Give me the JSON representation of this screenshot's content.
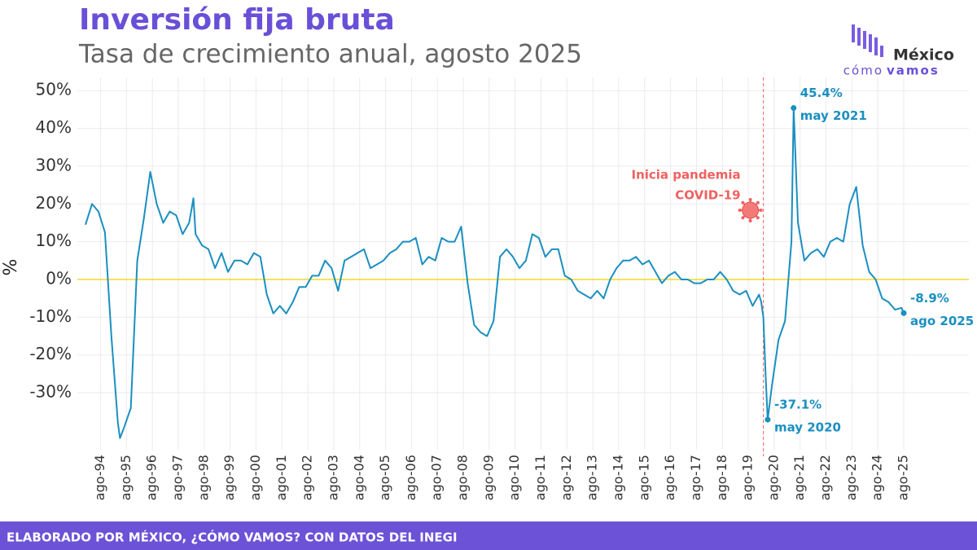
{
  "chart_data": {
    "type": "line",
    "title": "Inversión fija bruta",
    "subtitle": "Tasa de crecimiento anual, agosto 2025",
    "y_label": "%",
    "source": "ELABORADO POR MÉXICO, ¿CÓMO VAMOS? CON DATOS DEL INEGI",
    "logo": {
      "name": "México",
      "line1": "cómo",
      "line2": "vamos"
    },
    "color": "#1a8fc0",
    "zero_line_color": "#f0d000",
    "grid": true,
    "event": {
      "x": "2020-03",
      "label": [
        "Inicia pandemia",
        "COVID-19"
      ],
      "color": "#f06060"
    },
    "x": [
      "1994-01",
      "1994-04",
      "1994-07",
      "1994-10",
      "1995-01",
      "1995-04",
      "1995-05",
      "1995-07",
      "1995-10",
      "1996-01",
      "1996-04",
      "1996-07",
      "1996-10",
      "1997-01",
      "1997-04",
      "1997-07",
      "1997-10",
      "1998-01",
      "1998-03",
      "1998-04",
      "1998-07",
      "1998-10",
      "1999-01",
      "1999-04",
      "1999-07",
      "1999-10",
      "2000-01",
      "2000-04",
      "2000-07",
      "2000-10",
      "2001-01",
      "2001-04",
      "2001-07",
      "2001-10",
      "2002-01",
      "2002-04",
      "2002-07",
      "2002-10",
      "2003-01",
      "2003-04",
      "2003-07",
      "2003-10",
      "2004-01",
      "2004-04",
      "2004-07",
      "2004-10",
      "2005-01",
      "2005-04",
      "2005-07",
      "2005-10",
      "2006-01",
      "2006-04",
      "2006-07",
      "2006-10",
      "2007-01",
      "2007-04",
      "2007-07",
      "2007-10",
      "2008-01",
      "2008-04",
      "2008-07",
      "2008-10",
      "2009-01",
      "2009-04",
      "2009-07",
      "2009-10",
      "2010-01",
      "2010-04",
      "2010-07",
      "2010-10",
      "2011-01",
      "2011-04",
      "2011-07",
      "2011-10",
      "2012-01",
      "2012-04",
      "2012-07",
      "2012-10",
      "2013-01",
      "2013-04",
      "2013-07",
      "2013-10",
      "2014-01",
      "2014-04",
      "2014-07",
      "2014-10",
      "2015-01",
      "2015-04",
      "2015-07",
      "2015-10",
      "2016-01",
      "2016-04",
      "2016-07",
      "2016-10",
      "2017-01",
      "2017-04",
      "2017-07",
      "2017-10",
      "2018-01",
      "2018-04",
      "2018-07",
      "2018-10",
      "2019-01",
      "2019-04",
      "2019-07",
      "2019-10",
      "2020-01",
      "2020-02",
      "2020-03",
      "2020-04",
      "2020-05",
      "2020-07",
      "2020-10",
      "2021-01",
      "2021-04",
      "2021-05",
      "2021-07",
      "2021-10",
      "2022-01",
      "2022-04",
      "2022-07",
      "2022-10",
      "2023-01",
      "2023-04",
      "2023-07",
      "2023-10",
      "2024-01",
      "2024-04",
      "2024-07",
      "2024-10",
      "2025-01",
      "2025-04",
      "2025-07",
      "2025-08"
    ],
    "values": [
      14.5,
      20,
      18,
      12.5,
      -15,
      -38,
      -42,
      -39,
      -34,
      5,
      16,
      28.5,
      20,
      15,
      18,
      17,
      12,
      15,
      21.5,
      12,
      9,
      8,
      3,
      7,
      2,
      5,
      5,
      4,
      7,
      6,
      -4,
      -9,
      -7,
      -9,
      -6,
      -2,
      -2,
      1,
      1,
      5,
      3,
      -3,
      5,
      6,
      7,
      8,
      3,
      4,
      5,
      7,
      8,
      10,
      10,
      11,
      4,
      6,
      5,
      11,
      10,
      10,
      14,
      -1,
      -12,
      -14,
      -15,
      -11,
      6,
      8,
      6,
      3,
      5,
      12,
      11,
      6,
      8,
      8,
      1,
      0,
      -3,
      -4,
      -5,
      -3,
      -5,
      0,
      3,
      5,
      5,
      6,
      4,
      5,
      2,
      -1,
      1,
      2,
      0,
      0,
      -1,
      -1,
      0,
      0,
      2,
      0,
      -3,
      -4,
      -3,
      -7,
      -4,
      -6,
      -10,
      -25,
      -37.1,
      -28,
      -16,
      -11,
      10,
      45.4,
      15,
      5,
      7,
      8,
      6,
      10,
      11,
      10,
      20,
      24.5,
      9,
      2,
      0,
      -5,
      -6,
      -8,
      -7.5,
      -8.9
    ],
    "value_labels": [
      null,
      null,
      null,
      null,
      null,
      null,
      null,
      null,
      null,
      null,
      null,
      null,
      null,
      null,
      null,
      null,
      null,
      null,
      null,
      null,
      null,
      null,
      null,
      null,
      null,
      null,
      null,
      null,
      null,
      null,
      null,
      null,
      null,
      null,
      null,
      null,
      null,
      null,
      null,
      null,
      null,
      null,
      null,
      null,
      null,
      null,
      null,
      null,
      null,
      null,
      null,
      null,
      null,
      null,
      null,
      null,
      null,
      null,
      null,
      null,
      null,
      null,
      null,
      null,
      null,
      null,
      null,
      null,
      null,
      null,
      null,
      null,
      null,
      null,
      null,
      null,
      null,
      null,
      null,
      null,
      null,
      null,
      null,
      null,
      null,
      null,
      null,
      null,
      null,
      null,
      null,
      null,
      null,
      null,
      null,
      null,
      null,
      null,
      null,
      null,
      null,
      null,
      null,
      null,
      null,
      null,
      null,
      null,
      null,
      null,
      "-37.1%",
      null,
      null,
      null,
      null,
      "45.4%",
      null,
      null,
      null,
      null,
      null,
      null,
      null,
      null,
      null,
      null,
      null,
      null,
      null,
      null,
      null,
      null,
      null,
      "-8.9%"
    ],
    "point_dates": [
      null,
      null,
      null,
      null,
      null,
      null,
      null,
      null,
      null,
      null,
      null,
      null,
      null,
      null,
      null,
      null,
      null,
      null,
      null,
      null,
      null,
      null,
      null,
      null,
      null,
      null,
      null,
      null,
      null,
      null,
      null,
      null,
      null,
      null,
      null,
      null,
      null,
      null,
      null,
      null,
      null,
      null,
      null,
      null,
      null,
      null,
      null,
      null,
      null,
      null,
      null,
      null,
      null,
      null,
      null,
      null,
      null,
      null,
      null,
      null,
      null,
      null,
      null,
      null,
      null,
      null,
      null,
      null,
      null,
      null,
      null,
      null,
      null,
      null,
      null,
      null,
      null,
      null,
      null,
      null,
      null,
      null,
      null,
      null,
      null,
      null,
      null,
      null,
      null,
      null,
      null,
      null,
      null,
      null,
      null,
      null,
      null,
      null,
      null,
      null,
      null,
      null,
      null,
      null,
      null,
      null,
      null,
      null,
      null,
      null,
      "may 2020",
      null,
      null,
      null,
      null,
      "may 2021",
      null,
      null,
      null,
      null,
      null,
      null,
      null,
      null,
      null,
      null,
      null,
      null,
      null,
      null,
      null,
      null,
      null,
      "ago 2025"
    ],
    "xlim": [
      "1994-01",
      "2025-08"
    ],
    "xticks": [
      {
        "value": "1994-08",
        "label": "ago-94"
      },
      {
        "value": "1995-08",
        "label": "ago-95"
      },
      {
        "value": "1996-08",
        "label": "ago-96"
      },
      {
        "value": "1997-08",
        "label": "ago-97"
      },
      {
        "value": "1998-08",
        "label": "ago-98"
      },
      {
        "value": "1999-08",
        "label": "ago-99"
      },
      {
        "value": "2000-08",
        "label": "ago-00"
      },
      {
        "value": "2001-08",
        "label": "ago-01"
      },
      {
        "value": "2002-08",
        "label": "ago-02"
      },
      {
        "value": "2003-08",
        "label": "ago-03"
      },
      {
        "value": "2004-08",
        "label": "ago-04"
      },
      {
        "value": "2005-08",
        "label": "ago-05"
      },
      {
        "value": "2006-08",
        "label": "ago-06"
      },
      {
        "value": "2007-08",
        "label": "ago-07"
      },
      {
        "value": "2008-08",
        "label": "ago-08"
      },
      {
        "value": "2009-08",
        "label": "ago-09"
      },
      {
        "value": "2010-08",
        "label": "ago-10"
      },
      {
        "value": "2011-08",
        "label": "ago-11"
      },
      {
        "value": "2012-08",
        "label": "ago-12"
      },
      {
        "value": "2013-08",
        "label": "ago-13"
      },
      {
        "value": "2014-08",
        "label": "ago-14"
      },
      {
        "value": "2015-08",
        "label": "ago-15"
      },
      {
        "value": "2016-08",
        "label": "ago-16"
      },
      {
        "value": "2017-08",
        "label": "ago-17"
      },
      {
        "value": "2018-08",
        "label": "ago-18"
      },
      {
        "value": "2019-08",
        "label": "ago-19"
      },
      {
        "value": "2020-08",
        "label": "ago-20"
      },
      {
        "value": "2021-08",
        "label": "ago-21"
      },
      {
        "value": "2022-08",
        "label": "ago-22"
      },
      {
        "value": "2023-08",
        "label": "ago-23"
      },
      {
        "value": "2024-08",
        "label": "ago-24"
      },
      {
        "value": "2025-08",
        "label": "ago-25"
      }
    ],
    "ylim": [
      -42.5,
      53.5
    ],
    "yticks": [
      {
        "value": 50,
        "label": "50%"
      },
      {
        "value": 40,
        "label": "40%"
      },
      {
        "value": 30,
        "label": "30%"
      },
      {
        "value": 20,
        "label": "20%"
      },
      {
        "value": 10,
        "label": "10%"
      },
      {
        "value": 0,
        "label": "0%"
      },
      {
        "value": -10,
        "label": "-10%"
      },
      {
        "value": -20,
        "label": "-20%"
      },
      {
        "value": -30,
        "label": "-30%"
      }
    ]
  }
}
